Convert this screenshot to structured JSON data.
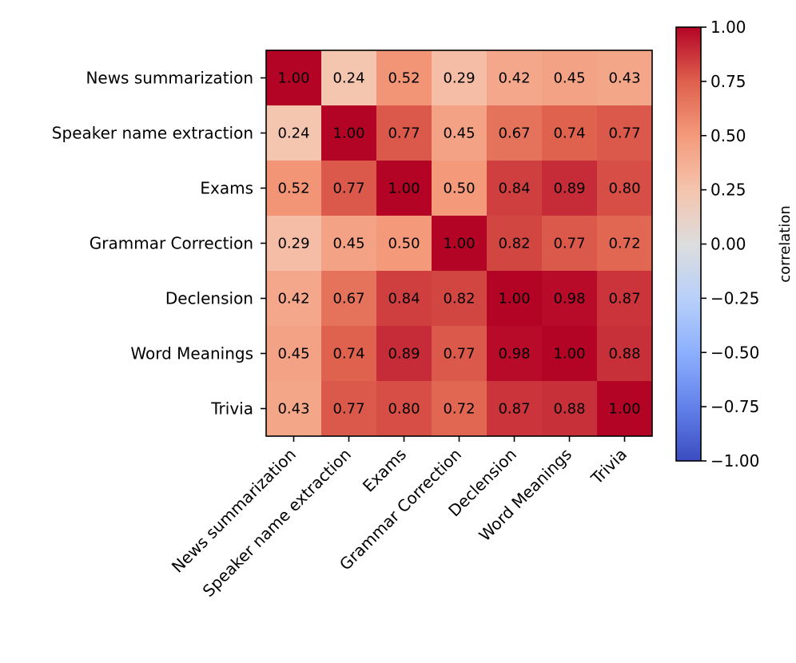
{
  "chart_data": {
    "type": "heatmap",
    "title": "",
    "xlabel": "",
    "ylabel": "",
    "row_labels": [
      "News summarization",
      "Speaker name extraction",
      "Exams",
      "Grammar Correction",
      "Declension",
      "Word Meanings",
      "Trivia"
    ],
    "col_labels": [
      "News summarization",
      "Speaker name extraction",
      "Exams",
      "Grammar Correction",
      "Declension",
      "Word Meanings",
      "Trivia"
    ],
    "values": [
      [
        1.0,
        0.24,
        0.52,
        0.29,
        0.42,
        0.45,
        0.43
      ],
      [
        0.24,
        1.0,
        0.77,
        0.45,
        0.67,
        0.74,
        0.77
      ],
      [
        0.52,
        0.77,
        1.0,
        0.5,
        0.84,
        0.89,
        0.8
      ],
      [
        0.29,
        0.45,
        0.5,
        1.0,
        0.82,
        0.77,
        0.72
      ],
      [
        0.42,
        0.67,
        0.84,
        0.82,
        1.0,
        0.98,
        0.87
      ],
      [
        0.45,
        0.74,
        0.89,
        0.77,
        0.98,
        1.0,
        0.88
      ],
      [
        0.43,
        0.77,
        0.8,
        0.72,
        0.87,
        0.88,
        1.0
      ]
    ],
    "value_format": "0.00",
    "colormap": "coolwarm",
    "colorbar": {
      "label": "correlation",
      "range": [
        -1.0,
        1.0
      ],
      "ticks": [
        1.0,
        0.75,
        0.5,
        0.25,
        0.0,
        -0.25,
        -0.5,
        -0.75,
        -1.0
      ],
      "tick_labels": [
        "1.00",
        "0.75",
        "0.50",
        "0.25",
        "0.00",
        "−0.25",
        "−0.50",
        "−0.75",
        "−1.00"
      ]
    }
  }
}
